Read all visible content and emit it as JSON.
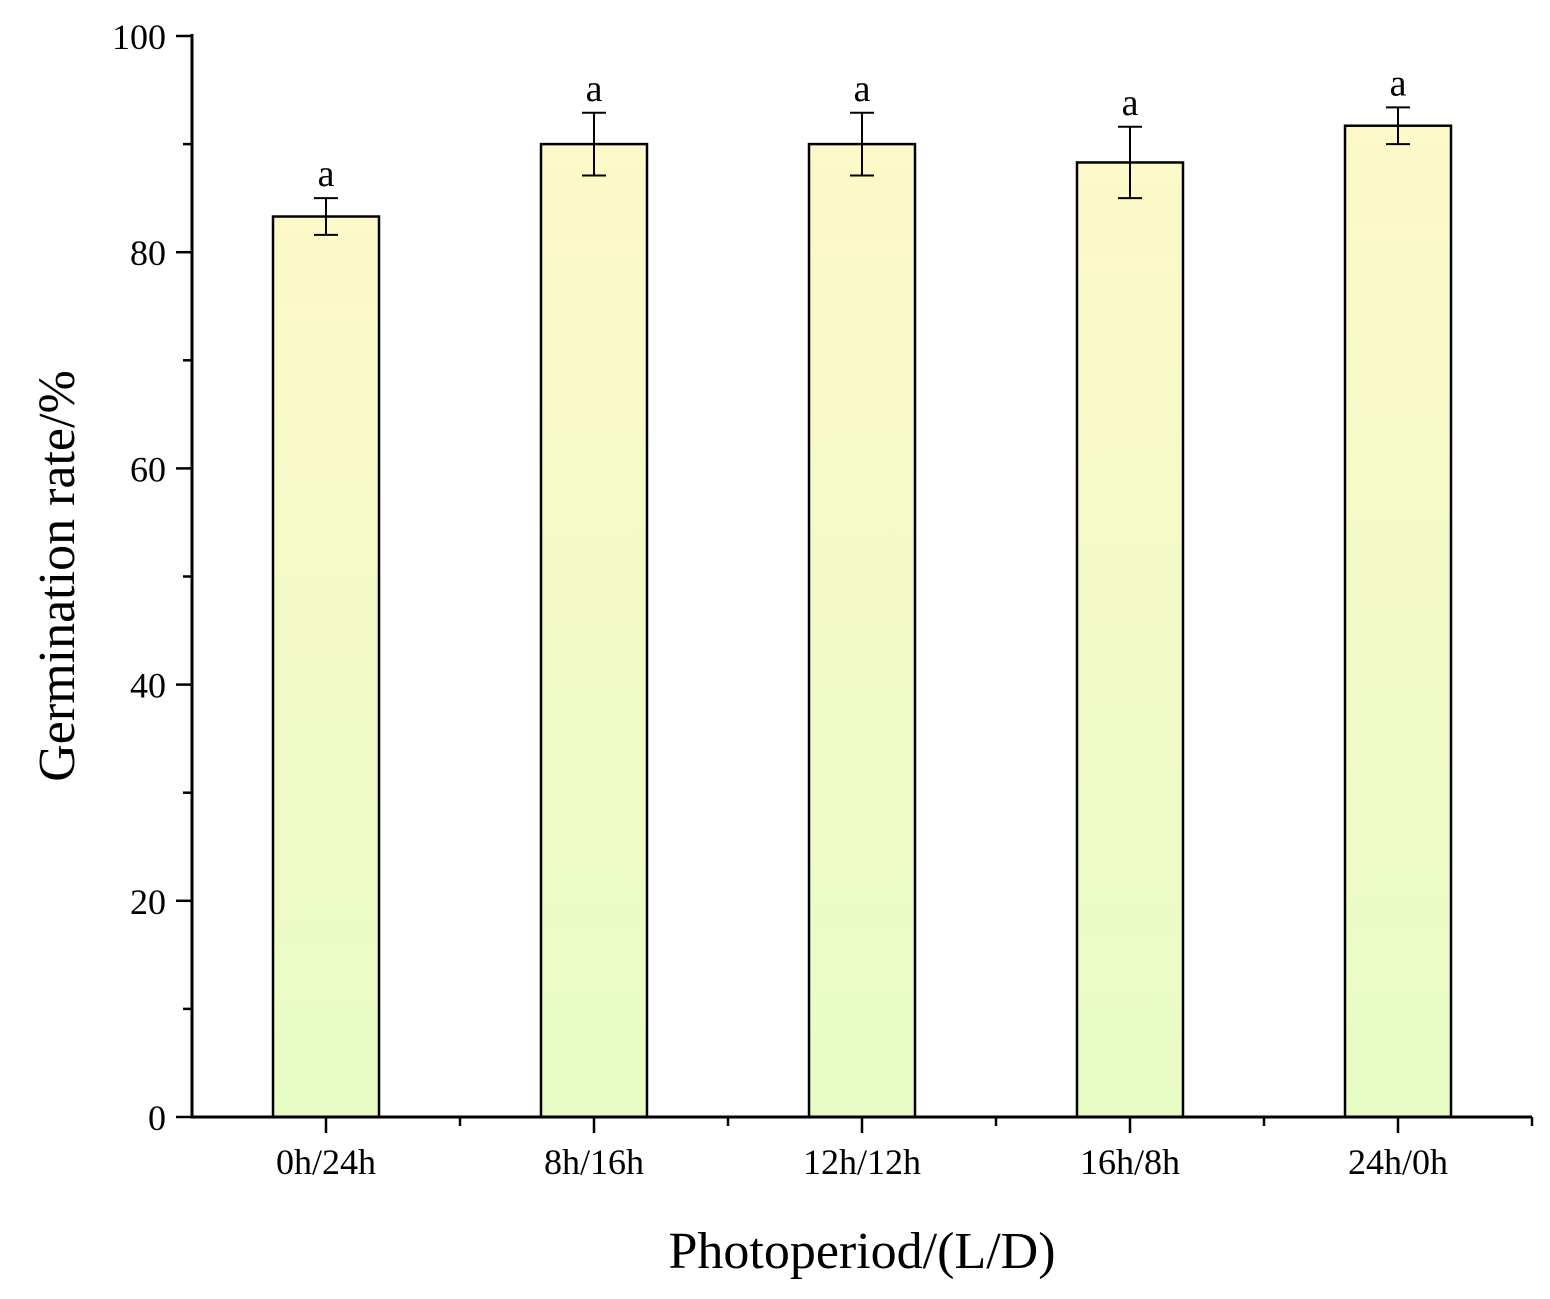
{
  "chart_data": {
    "type": "bar",
    "title": "",
    "xlabel": "Photoperiod/(L/D)",
    "ylabel": "Germination rate/%",
    "categories": [
      "0h/24h",
      "8h/16h",
      "12h/12h",
      "16h/8h",
      "24h/0h"
    ],
    "values": [
      83.3,
      90.0,
      90.0,
      88.3,
      91.7
    ],
    "errors": [
      1.7,
      2.9,
      2.9,
      3.3,
      1.7
    ],
    "significance": [
      "a",
      "a",
      "a",
      "a",
      "a"
    ],
    "ylim": [
      0,
      100
    ],
    "yticks": [
      "0",
      "20",
      "40",
      "60",
      "80",
      "100"
    ],
    "ytick_values": [
      0,
      20,
      40,
      60,
      80,
      100
    ],
    "minor_ytick_step": 10,
    "grid": false,
    "legend": "none",
    "colors": {
      "bar_top": "#fdf9c8",
      "bar_bottom": "#e8fcc6",
      "bar_edge": "#000000",
      "axis": "#000000"
    }
  }
}
